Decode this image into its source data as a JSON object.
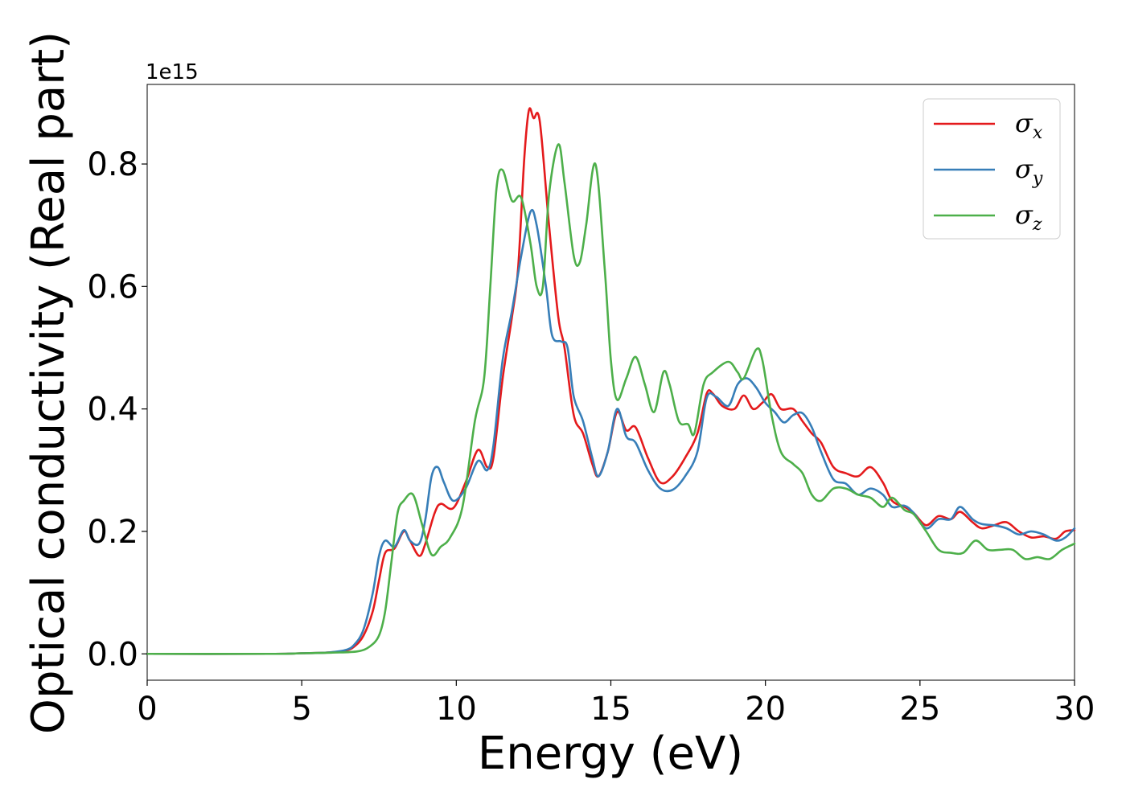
{
  "chart_data": {
    "type": "line",
    "xlabel": "Energy (eV)",
    "ylabel": "Optical conductivity (Real part)",
    "y_offset_label": "1e15",
    "y_multiplier": 1000000000000000.0,
    "xlim": [
      0,
      30
    ],
    "ylim": [
      -0.043,
      0.93
    ],
    "xticks": [
      0,
      5,
      10,
      15,
      20,
      25,
      30
    ],
    "xtick_labels": [
      "0",
      "5",
      "10",
      "15",
      "20",
      "25",
      "30"
    ],
    "yticks": [
      0.0,
      0.2,
      0.4,
      0.6,
      0.8
    ],
    "ytick_labels": [
      "0.0",
      "0.2",
      "0.4",
      "0.6",
      "0.8"
    ],
    "grid": false,
    "legend_position": "top-right",
    "series": [
      {
        "name": "σx",
        "symbol": "σ",
        "subscript": "x",
        "color": "#e41a1c",
        "points": [
          [
            0,
            0
          ],
          [
            4,
            0
          ],
          [
            5,
            0.001
          ],
          [
            5.8,
            0.002
          ],
          [
            6.4,
            0.005
          ],
          [
            6.7,
            0.012
          ],
          [
            7.0,
            0.03
          ],
          [
            7.3,
            0.07
          ],
          [
            7.5,
            0.12
          ],
          [
            7.7,
            0.165
          ],
          [
            8.0,
            0.172
          ],
          [
            8.3,
            0.2
          ],
          [
            8.5,
            0.185
          ],
          [
            8.8,
            0.16
          ],
          [
            9.0,
            0.18
          ],
          [
            9.3,
            0.23
          ],
          [
            9.5,
            0.245
          ],
          [
            9.9,
            0.238
          ],
          [
            10.3,
            0.28
          ],
          [
            10.7,
            0.333
          ],
          [
            11.0,
            0.305
          ],
          [
            11.2,
            0.32
          ],
          [
            11.5,
            0.45
          ],
          [
            11.8,
            0.55
          ],
          [
            12.0,
            0.63
          ],
          [
            12.2,
            0.81
          ],
          [
            12.35,
            0.888
          ],
          [
            12.5,
            0.875
          ],
          [
            12.7,
            0.87
          ],
          [
            13.0,
            0.7
          ],
          [
            13.3,
            0.55
          ],
          [
            13.5,
            0.5
          ],
          [
            13.8,
            0.39
          ],
          [
            14.1,
            0.36
          ],
          [
            14.4,
            0.31
          ],
          [
            14.6,
            0.29
          ],
          [
            14.9,
            0.33
          ],
          [
            15.2,
            0.395
          ],
          [
            15.5,
            0.365
          ],
          [
            15.8,
            0.37
          ],
          [
            16.2,
            0.32
          ],
          [
            16.6,
            0.28
          ],
          [
            17.0,
            0.29
          ],
          [
            17.4,
            0.32
          ],
          [
            17.8,
            0.36
          ],
          [
            18.1,
            0.425
          ],
          [
            18.3,
            0.425
          ],
          [
            18.6,
            0.405
          ],
          [
            19.0,
            0.4
          ],
          [
            19.3,
            0.422
          ],
          [
            19.6,
            0.4
          ],
          [
            19.9,
            0.41
          ],
          [
            20.2,
            0.424
          ],
          [
            20.5,
            0.4
          ],
          [
            20.9,
            0.4
          ],
          [
            21.2,
            0.38
          ],
          [
            21.5,
            0.36
          ],
          [
            21.8,
            0.345
          ],
          [
            22.2,
            0.305
          ],
          [
            22.6,
            0.295
          ],
          [
            23.0,
            0.29
          ],
          [
            23.4,
            0.305
          ],
          [
            23.8,
            0.28
          ],
          [
            24.1,
            0.25
          ],
          [
            24.5,
            0.24
          ],
          [
            24.8,
            0.23
          ],
          [
            25.2,
            0.21
          ],
          [
            25.6,
            0.225
          ],
          [
            26.0,
            0.22
          ],
          [
            26.3,
            0.232
          ],
          [
            26.7,
            0.215
          ],
          [
            27.0,
            0.205
          ],
          [
            27.4,
            0.21
          ],
          [
            27.8,
            0.215
          ],
          [
            28.2,
            0.2
          ],
          [
            28.6,
            0.19
          ],
          [
            29.0,
            0.192
          ],
          [
            29.4,
            0.188
          ],
          [
            29.7,
            0.2
          ],
          [
            30.0,
            0.202
          ]
        ]
      },
      {
        "name": "σy",
        "symbol": "σ",
        "subscript": "y",
        "color": "#377eb8",
        "points": [
          [
            0,
            0
          ],
          [
            4,
            0
          ],
          [
            5,
            0.001
          ],
          [
            5.8,
            0.002
          ],
          [
            6.4,
            0.006
          ],
          [
            6.7,
            0.015
          ],
          [
            7.0,
            0.04
          ],
          [
            7.3,
            0.1
          ],
          [
            7.5,
            0.16
          ],
          [
            7.7,
            0.185
          ],
          [
            8.0,
            0.175
          ],
          [
            8.3,
            0.202
          ],
          [
            8.5,
            0.185
          ],
          [
            8.8,
            0.18
          ],
          [
            9.0,
            0.22
          ],
          [
            9.2,
            0.29
          ],
          [
            9.4,
            0.305
          ],
          [
            9.6,
            0.28
          ],
          [
            9.9,
            0.25
          ],
          [
            10.3,
            0.27
          ],
          [
            10.7,
            0.315
          ],
          [
            11.0,
            0.3
          ],
          [
            11.2,
            0.34
          ],
          [
            11.5,
            0.48
          ],
          [
            11.8,
            0.56
          ],
          [
            12.1,
            0.65
          ],
          [
            12.4,
            0.722
          ],
          [
            12.6,
            0.7
          ],
          [
            12.9,
            0.6
          ],
          [
            13.1,
            0.52
          ],
          [
            13.4,
            0.51
          ],
          [
            13.6,
            0.5
          ],
          [
            13.8,
            0.42
          ],
          [
            14.1,
            0.38
          ],
          [
            14.4,
            0.32
          ],
          [
            14.6,
            0.29
          ],
          [
            14.9,
            0.33
          ],
          [
            15.2,
            0.4
          ],
          [
            15.5,
            0.355
          ],
          [
            15.8,
            0.345
          ],
          [
            16.2,
            0.3
          ],
          [
            16.6,
            0.27
          ],
          [
            17.0,
            0.268
          ],
          [
            17.4,
            0.29
          ],
          [
            17.8,
            0.33
          ],
          [
            18.1,
            0.418
          ],
          [
            18.4,
            0.42
          ],
          [
            18.8,
            0.405
          ],
          [
            19.1,
            0.44
          ],
          [
            19.4,
            0.45
          ],
          [
            19.7,
            0.435
          ],
          [
            20.0,
            0.41
          ],
          [
            20.3,
            0.395
          ],
          [
            20.6,
            0.378
          ],
          [
            20.9,
            0.39
          ],
          [
            21.2,
            0.393
          ],
          [
            21.5,
            0.37
          ],
          [
            21.8,
            0.33
          ],
          [
            22.2,
            0.285
          ],
          [
            22.6,
            0.278
          ],
          [
            23.0,
            0.26
          ],
          [
            23.4,
            0.27
          ],
          [
            23.8,
            0.26
          ],
          [
            24.1,
            0.24
          ],
          [
            24.5,
            0.242
          ],
          [
            24.8,
            0.23
          ],
          [
            25.2,
            0.205
          ],
          [
            25.6,
            0.22
          ],
          [
            26.0,
            0.22
          ],
          [
            26.3,
            0.24
          ],
          [
            26.7,
            0.22
          ],
          [
            27.0,
            0.212
          ],
          [
            27.4,
            0.21
          ],
          [
            27.8,
            0.205
          ],
          [
            28.2,
            0.195
          ],
          [
            28.6,
            0.2
          ],
          [
            29.0,
            0.195
          ],
          [
            29.4,
            0.185
          ],
          [
            29.7,
            0.19
          ],
          [
            30.0,
            0.205
          ]
        ]
      },
      {
        "name": "σz",
        "symbol": "σ",
        "subscript": "z",
        "color": "#4daf4a",
        "points": [
          [
            0,
            0
          ],
          [
            4,
            0
          ],
          [
            5,
            0.001
          ],
          [
            6.0,
            0.002
          ],
          [
            6.8,
            0.004
          ],
          [
            7.2,
            0.012
          ],
          [
            7.5,
            0.03
          ],
          [
            7.7,
            0.07
          ],
          [
            7.9,
            0.15
          ],
          [
            8.1,
            0.23
          ],
          [
            8.3,
            0.25
          ],
          [
            8.6,
            0.26
          ],
          [
            8.9,
            0.21
          ],
          [
            9.2,
            0.162
          ],
          [
            9.5,
            0.175
          ],
          [
            9.8,
            0.19
          ],
          [
            10.2,
            0.24
          ],
          [
            10.6,
            0.38
          ],
          [
            10.9,
            0.45
          ],
          [
            11.1,
            0.6
          ],
          [
            11.3,
            0.76
          ],
          [
            11.5,
            0.79
          ],
          [
            11.8,
            0.74
          ],
          [
            12.1,
            0.745
          ],
          [
            12.4,
            0.67
          ],
          [
            12.6,
            0.6
          ],
          [
            12.8,
            0.6
          ],
          [
            13.0,
            0.75
          ],
          [
            13.3,
            0.832
          ],
          [
            13.5,
            0.77
          ],
          [
            13.8,
            0.65
          ],
          [
            14.0,
            0.64
          ],
          [
            14.2,
            0.7
          ],
          [
            14.5,
            0.8
          ],
          [
            14.8,
            0.63
          ],
          [
            15.0,
            0.48
          ],
          [
            15.2,
            0.415
          ],
          [
            15.5,
            0.45
          ],
          [
            15.8,
            0.485
          ],
          [
            16.1,
            0.44
          ],
          [
            16.4,
            0.395
          ],
          [
            16.7,
            0.46
          ],
          [
            16.9,
            0.44
          ],
          [
            17.2,
            0.38
          ],
          [
            17.5,
            0.375
          ],
          [
            17.7,
            0.36
          ],
          [
            18.0,
            0.44
          ],
          [
            18.3,
            0.46
          ],
          [
            18.8,
            0.477
          ],
          [
            19.1,
            0.46
          ],
          [
            19.3,
            0.45
          ],
          [
            19.7,
            0.497
          ],
          [
            19.9,
            0.48
          ],
          [
            20.2,
            0.39
          ],
          [
            20.5,
            0.33
          ],
          [
            20.9,
            0.31
          ],
          [
            21.2,
            0.295
          ],
          [
            21.5,
            0.26
          ],
          [
            21.8,
            0.25
          ],
          [
            22.2,
            0.27
          ],
          [
            22.6,
            0.27
          ],
          [
            23.0,
            0.26
          ],
          [
            23.4,
            0.255
          ],
          [
            23.8,
            0.24
          ],
          [
            24.1,
            0.255
          ],
          [
            24.5,
            0.235
          ],
          [
            24.8,
            0.228
          ],
          [
            25.2,
            0.2
          ],
          [
            25.6,
            0.17
          ],
          [
            26.0,
            0.165
          ],
          [
            26.4,
            0.165
          ],
          [
            26.8,
            0.185
          ],
          [
            27.2,
            0.17
          ],
          [
            27.6,
            0.17
          ],
          [
            28.0,
            0.17
          ],
          [
            28.4,
            0.155
          ],
          [
            28.8,
            0.158
          ],
          [
            29.2,
            0.155
          ],
          [
            29.6,
            0.17
          ],
          [
            30.0,
            0.18
          ]
        ]
      }
    ]
  }
}
